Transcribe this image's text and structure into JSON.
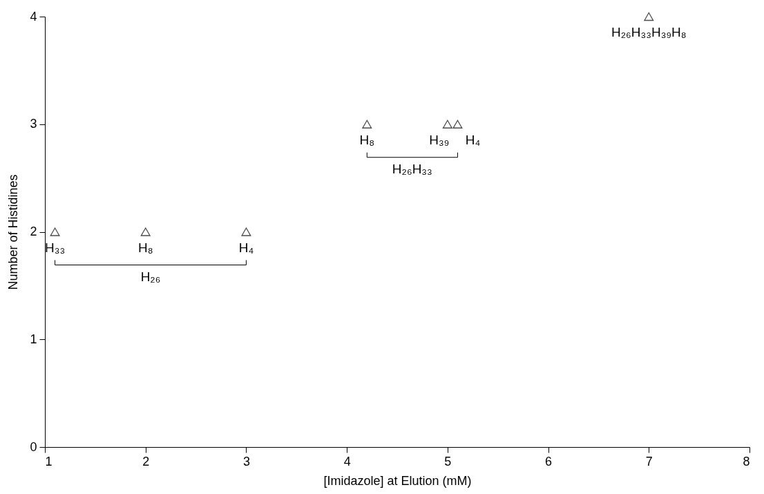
{
  "chart_data": {
    "type": "scatter",
    "xlabel": "[Imidazole] at Elution (mM)",
    "ylabel": "Number of Histidines",
    "x": [
      1.1,
      2,
      3,
      4.2,
      5,
      5.1,
      7
    ],
    "series": [
      {
        "color": "#000000",
        "values": [
          2,
          2,
          2,
          3,
          3,
          3,
          4
        ]
      }
    ],
    "marker": "triangle",
    "grid": false,
    "xlim": [
      1,
      8
    ],
    "xticks": [
      1,
      2,
      3,
      4,
      5,
      6,
      7,
      8
    ],
    "ylim": [
      0,
      4
    ],
    "yticks": [
      0,
      1,
      2,
      3,
      4
    ],
    "annotations": [
      {
        "text": "H₃₃",
        "x": 1.1,
        "y": 2
      },
      {
        "text": "H₈",
        "x": 2,
        "y": 2
      },
      {
        "text": "H₄",
        "x": 3,
        "y": 2
      },
      "H₂₆",
      {
        "text": "H₈",
        "x": 4.2,
        "y": 3
      },
      {
        "text": "H₃₉",
        "x": 5,
        "y": 3
      },
      {
        "text": "H₄",
        "x": 5.1,
        "y": 3
      },
      "H₂₆H₃₃",
      {
        "text": "H₂₆H₃₃H₃₉H₈",
        "x": 7,
        "y": 4
      }
    ]
  }
}
